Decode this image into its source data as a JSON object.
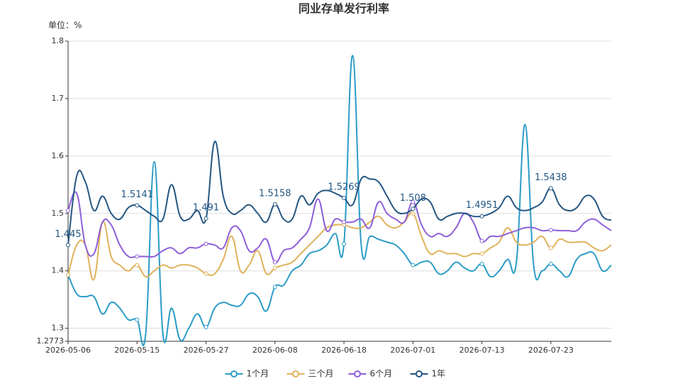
{
  "chart_data": {
    "type": "line",
    "title": "同业存单发行利率",
    "y_axis_label": "单位：%",
    "categories": [
      "2026-05-06",
      null,
      null,
      null,
      null,
      null,
      null,
      null,
      "2026-05-15",
      null,
      null,
      null,
      null,
      null,
      null,
      null,
      "2026-05-27",
      null,
      null,
      null,
      null,
      null,
      null,
      null,
      "2026-06-08",
      null,
      null,
      null,
      null,
      null,
      null,
      null,
      "2026-06-18",
      null,
      null,
      null,
      null,
      null,
      null,
      null,
      "2026-07-01",
      null,
      null,
      null,
      null,
      null,
      null,
      null,
      "2026-07-13",
      null,
      null,
      null,
      null,
      null,
      null,
      null,
      "2026-07-23",
      null,
      null,
      null,
      null,
      null,
      null,
      null
    ],
    "series": [
      {
        "name": "1个月",
        "color": "#2b9cc6",
        "values": [
          1.393,
          1.36,
          1.355,
          1.355,
          1.325,
          1.345,
          1.335,
          1.315,
          1.315,
          1.29,
          1.59,
          1.29,
          1.335,
          1.28,
          1.3,
          1.325,
          1.302,
          1.335,
          1.345,
          1.34,
          1.34,
          1.36,
          1.355,
          1.33,
          1.372,
          1.375,
          1.4,
          1.41,
          1.43,
          1.435,
          1.445,
          1.465,
          1.447,
          1.775,
          1.445,
          1.46,
          1.455,
          1.45,
          1.445,
          1.43,
          1.41,
          1.415,
          1.415,
          1.395,
          1.4,
          1.415,
          1.405,
          1.4,
          1.412,
          1.39,
          1.4,
          1.42,
          1.415,
          1.655,
          1.41,
          1.4,
          1.412,
          1.4,
          1.39,
          1.42,
          1.43,
          1.43,
          1.4,
          1.41
        ]
      },
      {
        "name": "三个月",
        "color": "#e0b25a",
        "values": [
          1.393,
          1.445,
          1.445,
          1.385,
          1.485,
          1.425,
          1.41,
          1.4,
          1.41,
          1.39,
          1.4,
          1.41,
          1.405,
          1.41,
          1.41,
          1.405,
          1.395,
          1.395,
          1.42,
          1.46,
          1.4,
          1.41,
          1.435,
          1.395,
          1.405,
          1.41,
          1.415,
          1.43,
          1.445,
          1.46,
          1.475,
          1.48,
          1.48,
          1.475,
          1.475,
          1.485,
          1.495,
          1.48,
          1.475,
          1.485,
          1.5,
          1.46,
          1.43,
          1.435,
          1.43,
          1.43,
          1.425,
          1.43,
          1.43,
          1.44,
          1.45,
          1.475,
          1.45,
          1.445,
          1.45,
          1.46,
          1.44,
          1.455,
          1.45,
          1.45,
          1.45,
          1.44,
          1.435,
          1.445
        ]
      },
      {
        "name": "6个月",
        "color": "#8e5fd9",
        "values": [
          1.505,
          1.535,
          1.445,
          1.43,
          1.485,
          1.48,
          1.445,
          1.425,
          1.425,
          1.425,
          1.425,
          1.435,
          1.44,
          1.43,
          1.44,
          1.44,
          1.447,
          1.445,
          1.44,
          1.475,
          1.47,
          1.435,
          1.44,
          1.455,
          1.415,
          1.435,
          1.44,
          1.455,
          1.475,
          1.525,
          1.47,
          1.49,
          1.485,
          1.485,
          1.49,
          1.475,
          1.52,
          1.5,
          1.49,
          1.485,
          1.52,
          1.48,
          1.46,
          1.465,
          1.46,
          1.475,
          1.5,
          1.485,
          1.452,
          1.46,
          1.46,
          1.465,
          1.47,
          1.475,
          1.475,
          1.47,
          1.471,
          1.47,
          1.47,
          1.47,
          1.485,
          1.49,
          1.48,
          1.47
        ]
      },
      {
        "name": "1年",
        "color": "#245683",
        "show_labels": true,
        "values": [
          1.445,
          1.565,
          1.555,
          1.505,
          1.53,
          1.5,
          1.49,
          1.51,
          1.5141,
          1.505,
          1.495,
          1.49,
          1.55,
          1.495,
          1.49,
          1.505,
          1.491,
          1.625,
          1.53,
          1.5,
          1.505,
          1.515,
          1.5,
          1.485,
          1.5158,
          1.49,
          1.49,
          1.53,
          1.515,
          1.535,
          1.54,
          1.535,
          1.5269,
          1.515,
          1.56,
          1.56,
          1.555,
          1.53,
          1.505,
          1.5,
          1.508,
          1.525,
          1.52,
          1.49,
          1.495,
          1.5,
          1.5,
          1.495,
          1.4951,
          1.5,
          1.51,
          1.53,
          1.51,
          1.505,
          1.51,
          1.52,
          1.5438,
          1.515,
          1.505,
          1.51,
          1.53,
          1.525,
          1.495,
          1.488
        ]
      }
    ],
    "ylim": [
      1.2773,
      1.8
    ],
    "yticks": [
      1.2773,
      1.3,
      1.4,
      1.5,
      1.6,
      1.7,
      1.8
    ],
    "grid": true,
    "legend": "bottom"
  }
}
